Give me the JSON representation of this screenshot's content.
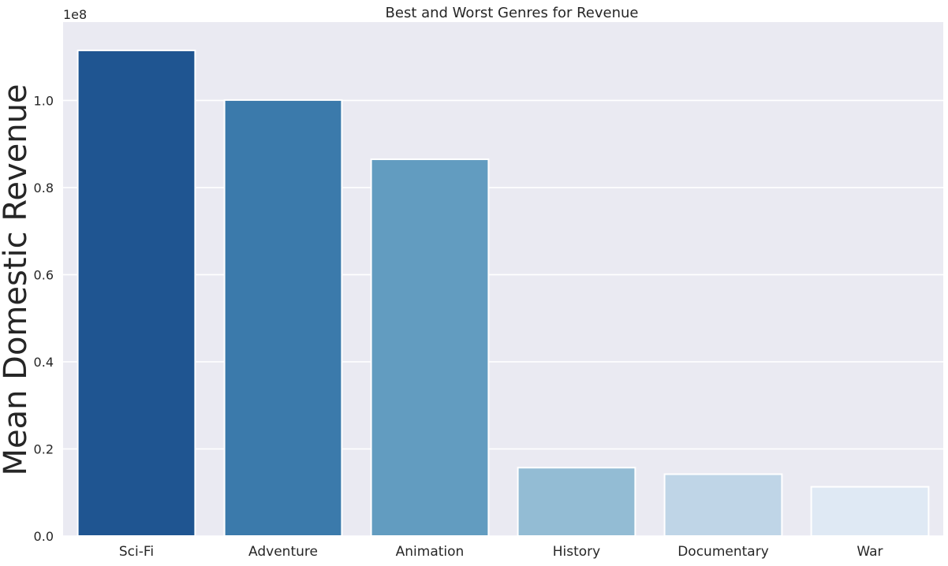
{
  "chart_data": {
    "type": "bar",
    "title": "Best and Worst Genres for Revenue",
    "xlabel": "",
    "ylabel": "Mean Domestic Revenue",
    "y_offset_label": "1e8",
    "categories": [
      "Sci-Fi",
      "Adventure",
      "Animation",
      "History",
      "Documentary",
      "War"
    ],
    "values": [
      111500000,
      100100000,
      86500000,
      15700000,
      14200000,
      11300000
    ],
    "ylim": [
      0,
      118000000
    ],
    "yticks": [
      0,
      20000000,
      40000000,
      60000000,
      80000000,
      100000000
    ],
    "ytick_labels": [
      "0.0",
      "0.2",
      "0.4",
      "0.6",
      "0.8",
      "1.0"
    ],
    "grid": true,
    "colors": [
      "#1f5591",
      "#3b7aab",
      "#629cc0",
      "#93bcd4",
      "#bfd5e7",
      "#dfe9f4"
    ],
    "background": "#eaeaf2",
    "gridline_color": "#ffffff"
  }
}
